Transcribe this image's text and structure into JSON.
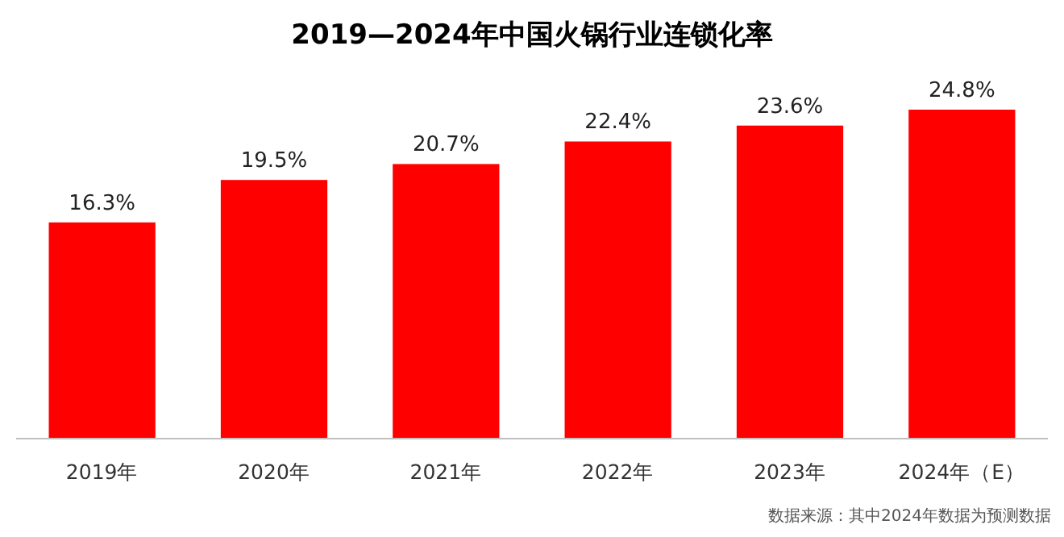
{
  "chart_data": {
    "type": "bar",
    "title": "2019—2024年中国火锅行业连锁化率",
    "categories": [
      "2019年",
      "2020年",
      "2021年",
      "2022年",
      "2023年",
      "2024年（E）"
    ],
    "values": [
      16.3,
      19.5,
      20.7,
      22.4,
      23.6,
      24.8
    ],
    "value_labels": [
      "16.3%",
      "19.5%",
      "20.7%",
      "22.4%",
      "23.6%",
      "24.8%"
    ],
    "color": "#ff0000",
    "annotations": [
      "数据来源：其中2024年数据为预测数据"
    ]
  }
}
